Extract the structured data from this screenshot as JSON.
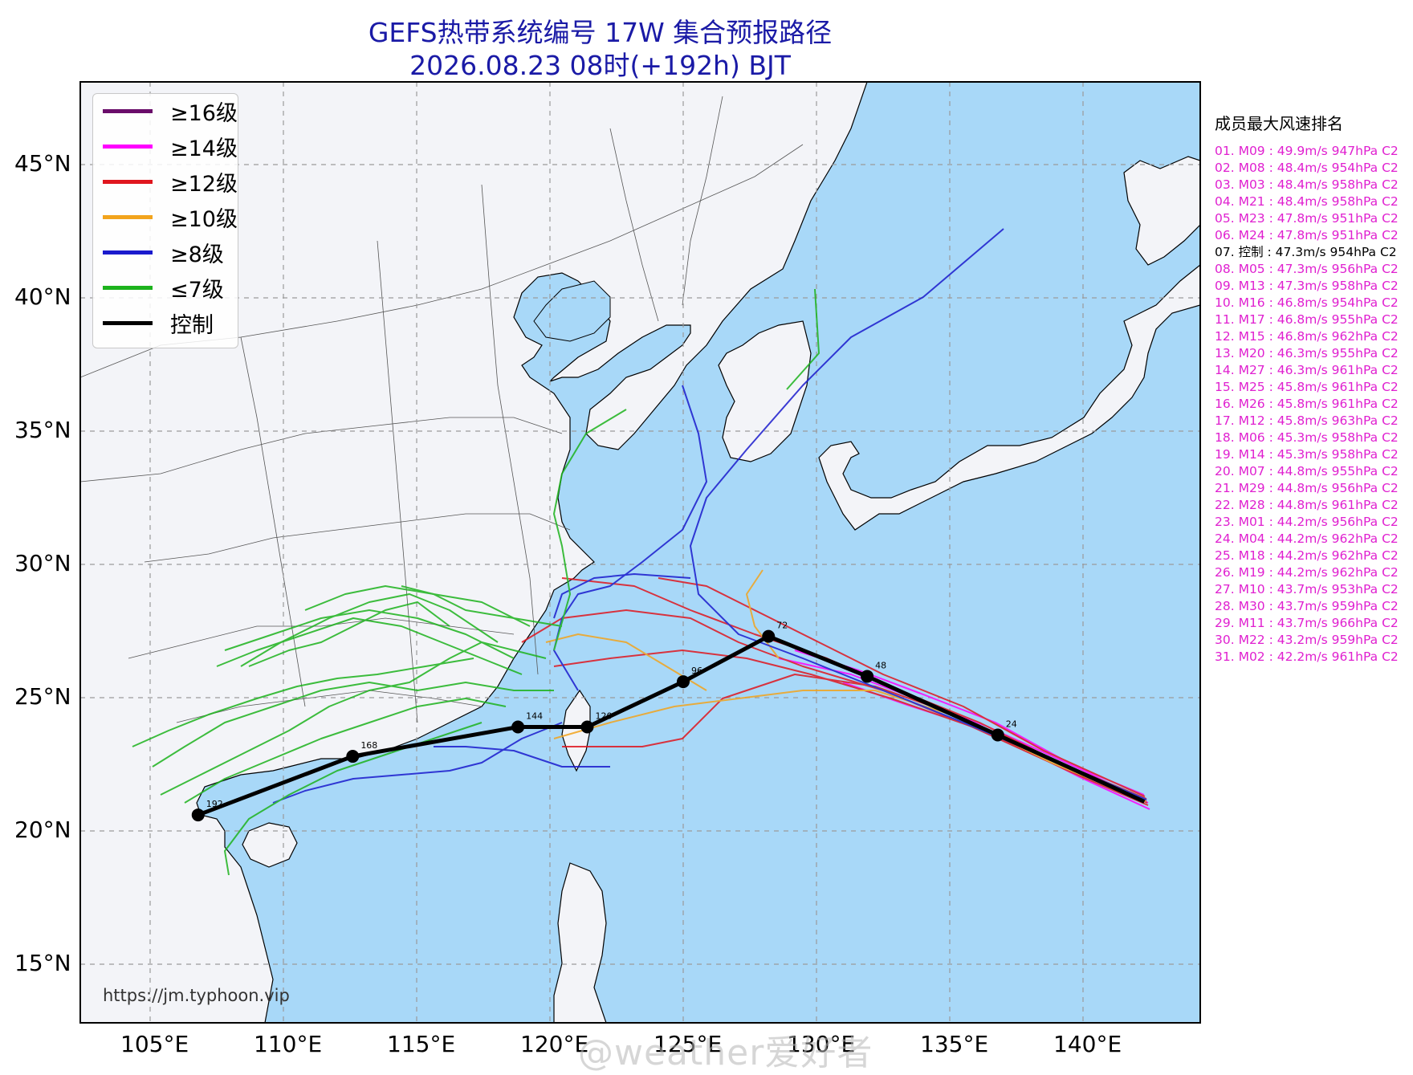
{
  "title": {
    "line1": "GEFS热带系统编号 17W 集合预报路径",
    "line2": "2026.08.23 08时(+192h) BJT"
  },
  "legend": [
    {
      "label": "≥16级",
      "color": "#6a0d6a"
    },
    {
      "label": "≥14级",
      "color": "#ff00ff"
    },
    {
      "label": "≥12级",
      "color": "#e0161e"
    },
    {
      "label": "≥10级",
      "color": "#f2a41d"
    },
    {
      "label": "≥8级",
      "color": "#1a1acd"
    },
    {
      "label": "≤7级",
      "color": "#1db31d"
    },
    {
      "label": "控制",
      "color": "#000000"
    }
  ],
  "axes": {
    "lon_ticks": [
      "105°E",
      "110°E",
      "115°E",
      "120°E",
      "125°E",
      "130°E",
      "135°E",
      "140°E"
    ],
    "lat_ticks": [
      "45°N",
      "40°N",
      "35°N",
      "30°N",
      "25°N",
      "20°N",
      "15°N"
    ]
  },
  "ranking": {
    "title": "成员最大风速排名",
    "items": [
      {
        "text": "01. M09 : 49.9m/s 947hPa C2",
        "color": "#e020d0"
      },
      {
        "text": "02. M08 : 48.4m/s 954hPa C2",
        "color": "#e020d0"
      },
      {
        "text": "03. M03 : 48.4m/s 958hPa C2",
        "color": "#e020d0"
      },
      {
        "text": "04. M21 : 48.4m/s 958hPa C2",
        "color": "#e020d0"
      },
      {
        "text": "05. M23 : 47.8m/s 951hPa C2",
        "color": "#e020d0"
      },
      {
        "text": "06. M24 : 47.8m/s 951hPa C2",
        "color": "#e020d0"
      },
      {
        "text": "07. 控制 : 47.3m/s 954hPa C2",
        "color": "#000000"
      },
      {
        "text": "08. M05 : 47.3m/s 956hPa C2",
        "color": "#e020d0"
      },
      {
        "text": "09. M13 : 47.3m/s 958hPa C2",
        "color": "#e020d0"
      },
      {
        "text": "10. M16 : 46.8m/s 954hPa C2",
        "color": "#e020d0"
      },
      {
        "text": "11. M17 : 46.8m/s 955hPa C2",
        "color": "#e020d0"
      },
      {
        "text": "12. M15 : 46.8m/s 962hPa C2",
        "color": "#e020d0"
      },
      {
        "text": "13. M20 : 46.3m/s 955hPa C2",
        "color": "#e020d0"
      },
      {
        "text": "14. M27 : 46.3m/s 961hPa C2",
        "color": "#e020d0"
      },
      {
        "text": "15. M25 : 45.8m/s 961hPa C2",
        "color": "#e020d0"
      },
      {
        "text": "16. M26 : 45.8m/s 961hPa C2",
        "color": "#e020d0"
      },
      {
        "text": "17. M12 : 45.8m/s 963hPa C2",
        "color": "#e020d0"
      },
      {
        "text": "18. M06 : 45.3m/s 958hPa C2",
        "color": "#e020d0"
      },
      {
        "text": "19. M14 : 45.3m/s 958hPa C2",
        "color": "#e020d0"
      },
      {
        "text": "20. M07 : 44.8m/s 955hPa C2",
        "color": "#e020d0"
      },
      {
        "text": "21. M29 : 44.8m/s 956hPa C2",
        "color": "#e020d0"
      },
      {
        "text": "22. M28 : 44.8m/s 961hPa C2",
        "color": "#e020d0"
      },
      {
        "text": "23. M01 : 44.2m/s 956hPa C2",
        "color": "#e020d0"
      },
      {
        "text": "24. M04 : 44.2m/s 962hPa C2",
        "color": "#e020d0"
      },
      {
        "text": "25. M18 : 44.2m/s 962hPa C2",
        "color": "#e020d0"
      },
      {
        "text": "26. M19 : 44.2m/s 962hPa C2",
        "color": "#e020d0"
      },
      {
        "text": "27. M10 : 43.7m/s 953hPa C2",
        "color": "#e020d0"
      },
      {
        "text": "28. M30 : 43.7m/s 959hPa C2",
        "color": "#e020d0"
      },
      {
        "text": "29. M11 : 43.7m/s 966hPa C2",
        "color": "#e020d0"
      },
      {
        "text": "30. M22 : 43.2m/s 959hPa C2",
        "color": "#e020d0"
      },
      {
        "text": "31. M02 : 42.2m/s 961hPa C2",
        "color": "#e020d0"
      }
    ]
  },
  "control_track": {
    "hours": [
      0,
      24,
      48,
      72,
      96,
      120,
      144,
      168,
      192
    ],
    "lonlat": [
      [
        142.3,
        21.1
      ],
      [
        136.8,
        23.6
      ],
      [
        131.9,
        25.8
      ],
      [
        128.2,
        27.3
      ],
      [
        125.0,
        25.6
      ],
      [
        121.4,
        23.9
      ],
      [
        118.8,
        23.9
      ],
      [
        112.6,
        22.8
      ],
      [
        106.8,
        20.6
      ]
    ]
  },
  "map_labels": {
    "hour_tags": [
      "24",
      "48",
      "72",
      "96",
      "120",
      "144",
      "168",
      "192"
    ]
  },
  "url": "https://jm.typhoon.vip",
  "watermark": "@weather爱好者"
}
